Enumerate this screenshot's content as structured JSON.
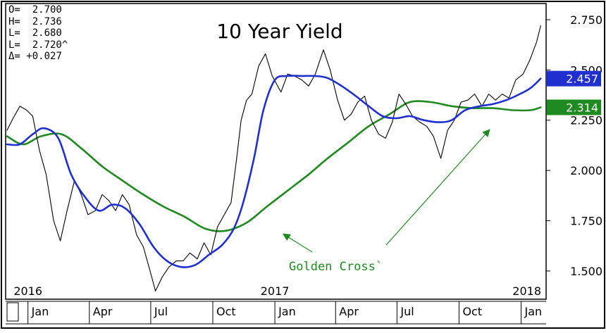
{
  "ohlc": [
    {
      "label": "O=",
      "value": "2.700"
    },
    {
      "label": "H=",
      "value": "2.736"
    },
    {
      "label": "L=",
      "value": "2.680"
    },
    {
      "label": "L=",
      "value": "2.720^"
    },
    {
      "label": "Δ=",
      "value": "+0.027"
    }
  ],
  "chart_data": {
    "type": "line",
    "title": "10 Year Yield",
    "xlabel": "",
    "ylabel": "",
    "ylim": [
      1.37,
      2.82
    ],
    "y_ticks": [
      "2.750",
      "2.500",
      "2.250",
      "2.000",
      "1.750",
      "1.500"
    ],
    "x_tick_labels": [
      "Jan",
      "Apr",
      "Jul",
      "Oct",
      "Jan",
      "Apr",
      "Jul",
      "Oct",
      "Jan"
    ],
    "year_labels": [
      "2016",
      "2017",
      "2018"
    ],
    "grid": false,
    "series": [
      {
        "role": "price",
        "color": "#000000",
        "x": [
          "2015-12-01",
          "2015-12-10",
          "2015-12-20",
          "2015-12-30",
          "2016-01-08",
          "2016-01-18",
          "2016-01-28",
          "2016-02-08",
          "2016-02-18",
          "2016-02-28",
          "2016-03-10",
          "2016-03-20",
          "2016-03-30",
          "2016-04-10",
          "2016-04-20",
          "2016-04-30",
          "2016-05-10",
          "2016-05-20",
          "2016-05-30",
          "2016-06-10",
          "2016-06-20",
          "2016-06-30",
          "2016-07-08",
          "2016-07-18",
          "2016-07-28",
          "2016-08-08",
          "2016-08-18",
          "2016-08-28",
          "2016-09-08",
          "2016-09-18",
          "2016-09-28",
          "2016-10-08",
          "2016-10-18",
          "2016-10-28",
          "2016-11-05",
          "2016-11-12",
          "2016-11-20",
          "2016-11-28",
          "2016-12-08",
          "2016-12-18",
          "2016-12-28",
          "2017-01-10",
          "2017-01-20",
          "2017-01-30",
          "2017-02-10",
          "2017-02-20",
          "2017-03-02",
          "2017-03-14",
          "2017-03-24",
          "2017-04-04",
          "2017-04-14",
          "2017-04-24",
          "2017-05-04",
          "2017-05-14",
          "2017-05-24",
          "2017-06-04",
          "2017-06-14",
          "2017-06-24",
          "2017-07-04",
          "2017-07-14",
          "2017-07-24",
          "2017-08-04",
          "2017-08-14",
          "2017-08-24",
          "2017-09-04",
          "2017-09-14",
          "2017-09-24",
          "2017-10-04",
          "2017-10-14",
          "2017-10-24",
          "2017-11-04",
          "2017-11-14",
          "2017-11-24",
          "2017-12-04",
          "2017-12-14",
          "2017-12-24",
          "2018-01-04",
          "2018-01-14",
          "2018-01-24",
          "2018-01-30"
        ],
        "values": [
          2.2,
          2.26,
          2.32,
          2.3,
          2.27,
          2.1,
          1.98,
          1.75,
          1.65,
          1.8,
          1.95,
          1.88,
          1.78,
          1.8,
          1.88,
          1.85,
          1.8,
          1.88,
          1.83,
          1.68,
          1.62,
          1.5,
          1.4,
          1.47,
          1.52,
          1.55,
          1.55,
          1.59,
          1.56,
          1.64,
          1.58,
          1.72,
          1.78,
          1.84,
          2.05,
          2.25,
          2.35,
          2.38,
          2.52,
          2.58,
          2.47,
          2.39,
          2.48,
          2.47,
          2.45,
          2.42,
          2.48,
          2.6,
          2.5,
          2.35,
          2.25,
          2.28,
          2.34,
          2.37,
          2.25,
          2.18,
          2.16,
          2.24,
          2.38,
          2.33,
          2.27,
          2.24,
          2.22,
          2.17,
          2.06,
          2.2,
          2.25,
          2.34,
          2.35,
          2.38,
          2.32,
          2.38,
          2.35,
          2.38,
          2.36,
          2.45,
          2.48,
          2.55,
          2.64,
          2.72
        ]
      },
      {
        "role": "short moving average",
        "color": "#1f2fd0",
        "x": [
          "2015-12-01",
          "2015-12-20",
          "2016-01-08",
          "2016-01-25",
          "2016-02-15",
          "2016-03-05",
          "2016-03-25",
          "2016-04-15",
          "2016-05-05",
          "2016-05-25",
          "2016-06-15",
          "2016-07-05",
          "2016-07-25",
          "2016-08-15",
          "2016-09-05",
          "2016-09-25",
          "2016-10-15",
          "2016-11-01",
          "2016-11-15",
          "2016-12-01",
          "2016-12-15",
          "2017-01-01",
          "2017-01-20",
          "2017-02-10",
          "2017-03-01",
          "2017-03-20",
          "2017-04-10",
          "2017-05-01",
          "2017-05-20",
          "2017-06-10",
          "2017-07-01",
          "2017-07-20",
          "2017-08-10",
          "2017-09-01",
          "2017-09-20",
          "2017-10-10",
          "2017-11-01",
          "2017-11-20",
          "2017-12-10",
          "2017-12-30",
          "2018-01-15",
          "2018-01-30"
        ],
        "values": [
          2.13,
          2.13,
          2.18,
          2.21,
          2.16,
          1.98,
          1.87,
          1.8,
          1.83,
          1.81,
          1.73,
          1.62,
          1.55,
          1.52,
          1.53,
          1.58,
          1.63,
          1.71,
          1.84,
          2.06,
          2.3,
          2.45,
          2.47,
          2.47,
          2.47,
          2.46,
          2.42,
          2.37,
          2.32,
          2.27,
          2.26,
          2.27,
          2.25,
          2.24,
          2.25,
          2.3,
          2.32,
          2.33,
          2.35,
          2.38,
          2.41,
          2.457
        ]
      },
      {
        "role": "long moving average",
        "color": "#1f8a1f",
        "x": [
          "2015-12-01",
          "2015-12-25",
          "2016-01-20",
          "2016-02-20",
          "2016-03-20",
          "2016-04-20",
          "2016-05-20",
          "2016-06-20",
          "2016-07-20",
          "2016-08-20",
          "2016-09-20",
          "2016-10-20",
          "2016-11-20",
          "2016-12-20",
          "2017-01-20",
          "2017-02-20",
          "2017-03-20",
          "2017-04-20",
          "2017-05-20",
          "2017-06-20",
          "2017-07-20",
          "2017-08-20",
          "2017-09-20",
          "2017-10-20",
          "2017-11-20",
          "2017-12-20",
          "2018-01-15",
          "2018-01-30"
        ],
        "values": [
          2.17,
          2.13,
          2.17,
          2.18,
          2.11,
          2.02,
          1.95,
          1.88,
          1.82,
          1.77,
          1.71,
          1.7,
          1.74,
          1.82,
          1.9,
          1.98,
          2.06,
          2.14,
          2.22,
          2.28,
          2.34,
          2.34,
          2.32,
          2.31,
          2.31,
          2.3,
          2.3,
          2.314
        ]
      }
    ],
    "tags": [
      {
        "value": "2.457",
        "color": "#1f2fd0"
      },
      {
        "value": "2.314",
        "color": "#1f8a1f"
      }
    ],
    "annotation": {
      "text": "Golden Cross",
      "suffix": "`",
      "color": "#1f8a1f"
    }
  }
}
